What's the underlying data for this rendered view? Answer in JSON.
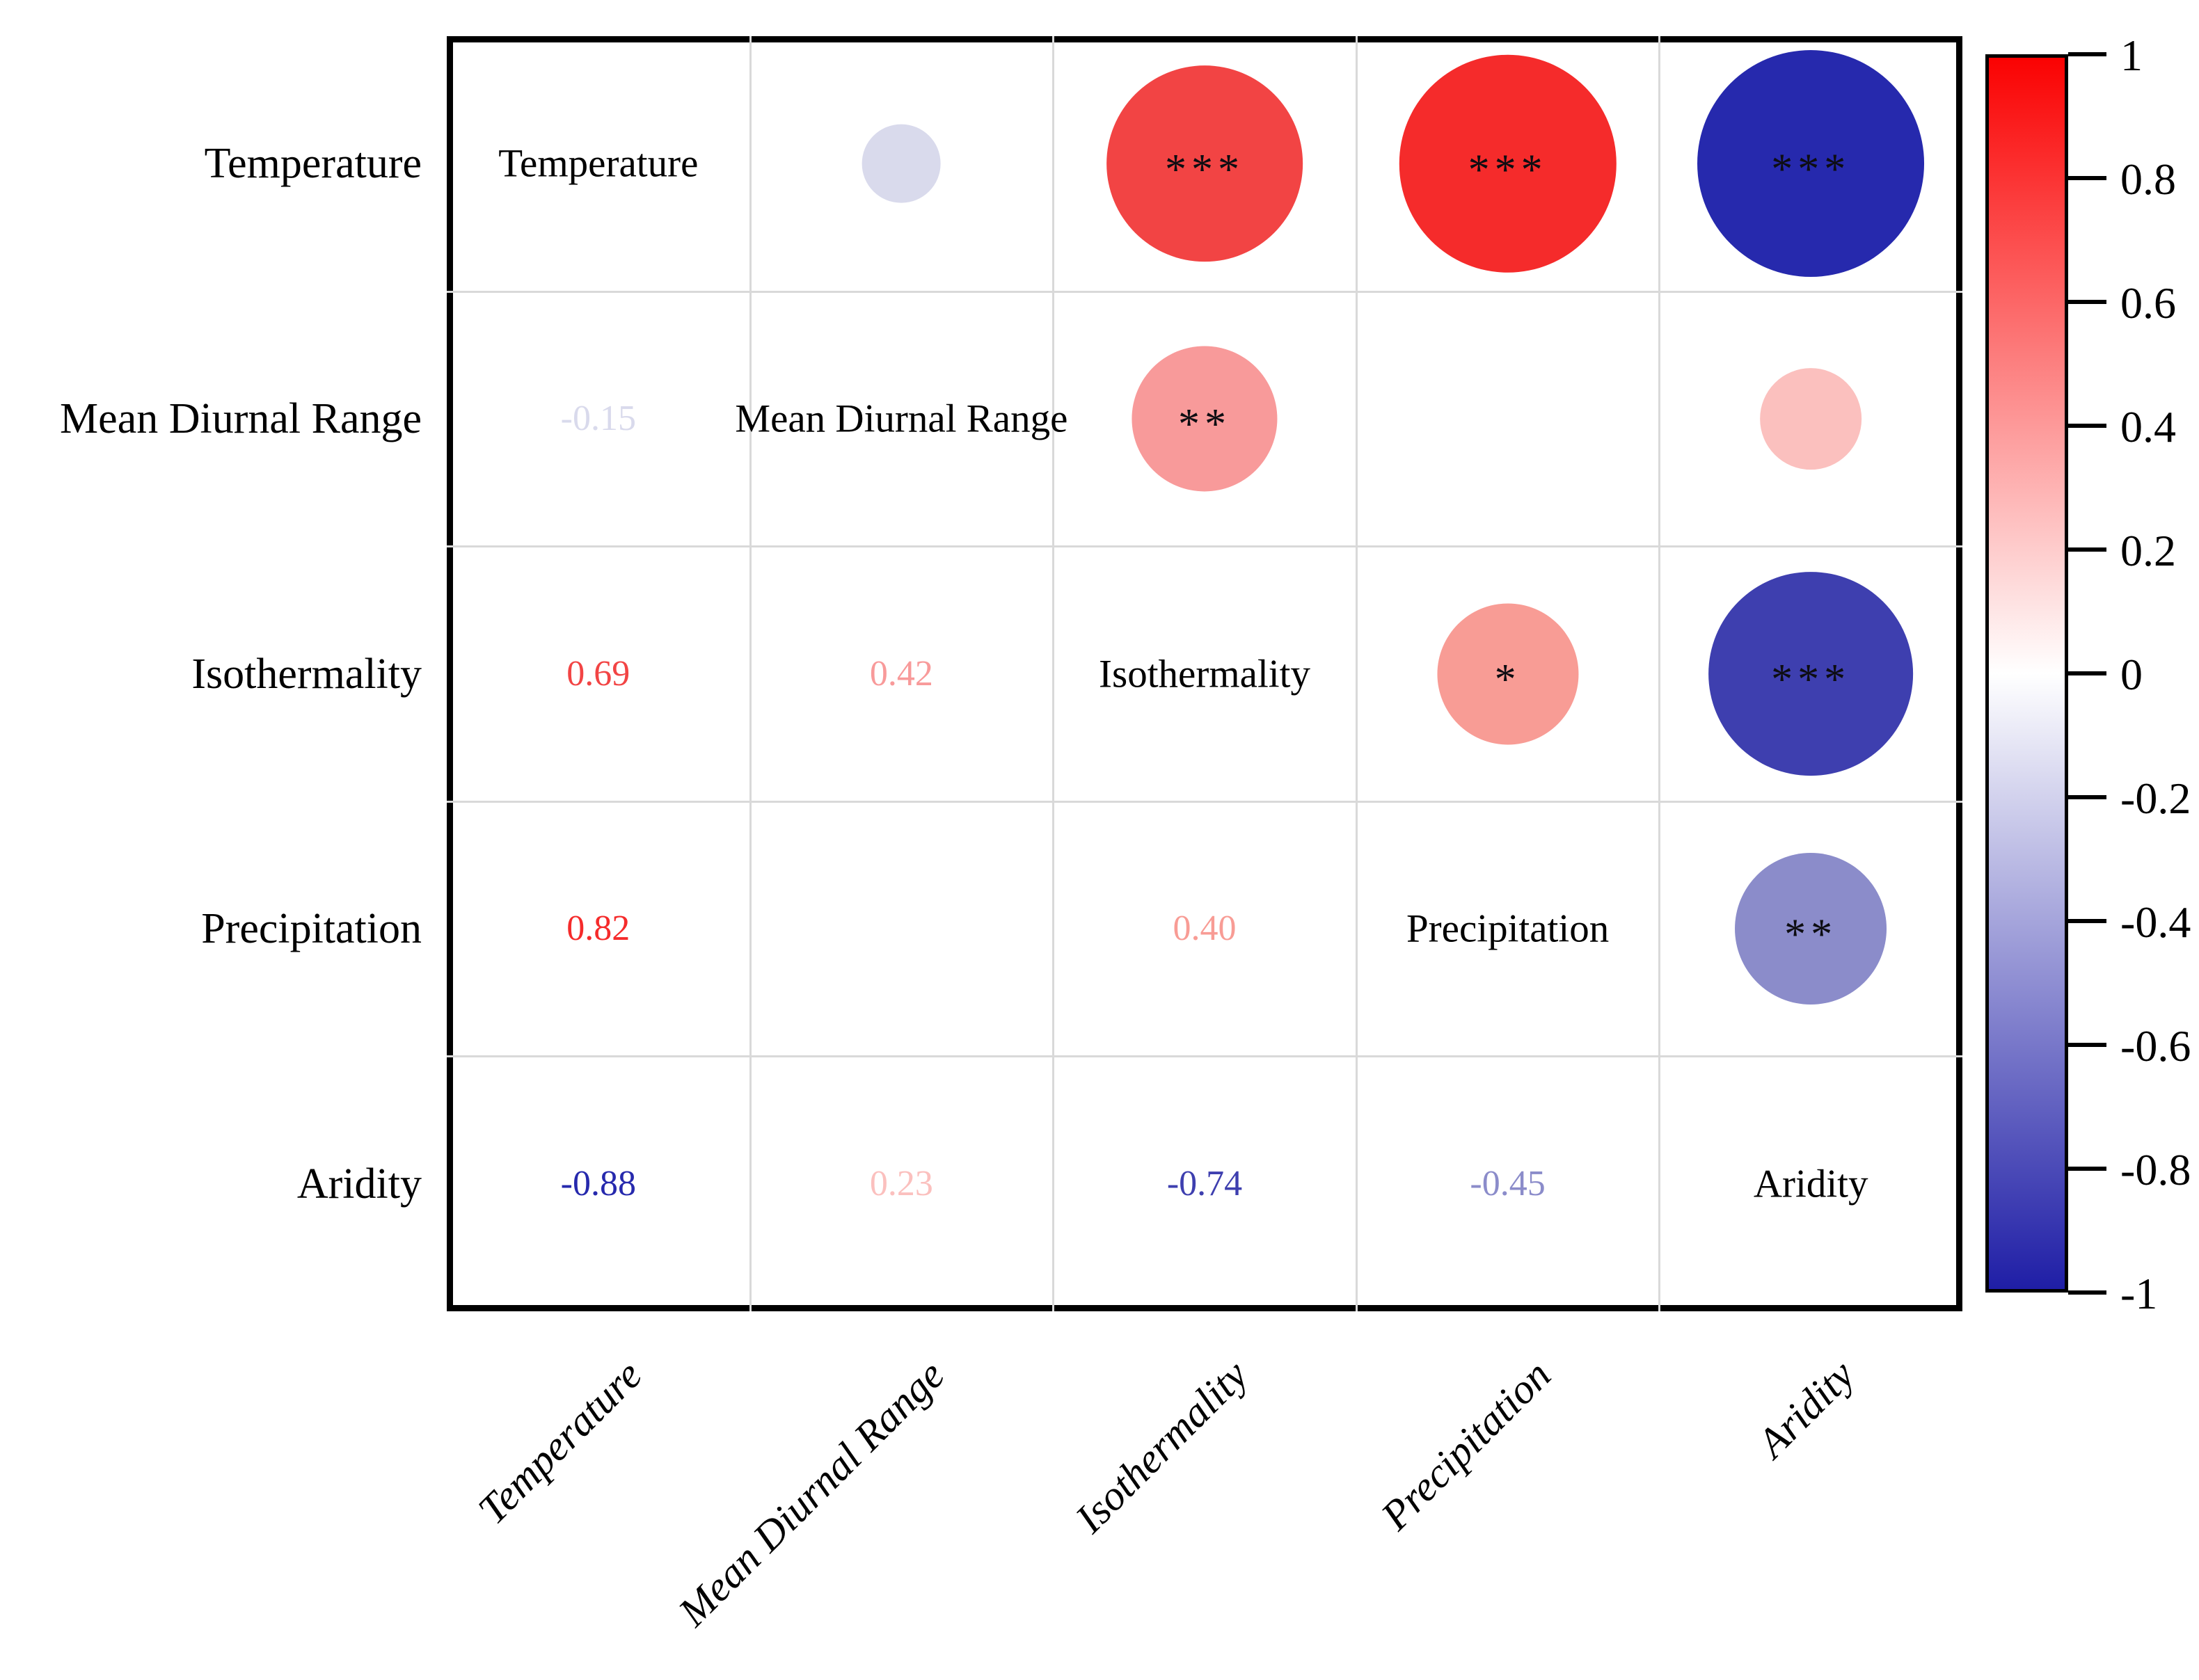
{
  "chart_data": {
    "type": "heatmap",
    "subtype": "correlation-matrix-corrplot",
    "variables": [
      "Temperature",
      "Mean Diurnal Range",
      "Isothermality",
      "Precipitation",
      "Aridity"
    ],
    "upper_triangle": "circles sized by |r|, colored by r, significance stars",
    "lower_triangle": "numeric r values colored by r",
    "pairs": [
      {
        "a": 0,
        "b": 1,
        "r": -0.15,
        "display": "-0.15",
        "stars": "",
        "color": "#d9daec"
      },
      {
        "a": 0,
        "b": 2,
        "r": 0.69,
        "display": "0.69",
        "stars": "***",
        "color": "#f24444"
      },
      {
        "a": 0,
        "b": 3,
        "r": 0.82,
        "display": "0.82",
        "stars": "***",
        "color": "#f52b2b"
      },
      {
        "a": 0,
        "b": 4,
        "r": -0.88,
        "display": "-0.88",
        "stars": "***",
        "color": "#2629ad"
      },
      {
        "a": 1,
        "b": 2,
        "r": 0.42,
        "display": "0.42",
        "stars": "**",
        "color": "#f89a9a"
      },
      {
        "a": 1,
        "b": 4,
        "r": 0.23,
        "display": "0.23",
        "stars": "",
        "color": "#fbc0be"
      },
      {
        "a": 2,
        "b": 3,
        "r": 0.4,
        "display": "0.40",
        "stars": "*",
        "color": "#f89c95"
      },
      {
        "a": 2,
        "b": 4,
        "r": -0.74,
        "display": "-0.74",
        "stars": "***",
        "color": "#3e3faf"
      },
      {
        "a": 3,
        "b": 4,
        "r": -0.45,
        "display": "-0.45",
        "stars": "**",
        "color": "#8b8cca"
      }
    ],
    "colorbar": {
      "position": "right",
      "range": [
        1,
        -1
      ],
      "ticks": [
        "1",
        "0.8",
        "0.6",
        "0.4",
        "0.2",
        "0",
        "-0.2",
        "-0.4",
        "-0.6",
        "-0.8",
        "-1"
      ],
      "top_color": "#fa0202",
      "mid_color": "#ffffff",
      "bottom_color": "#1f1ea6"
    },
    "grid": true,
    "circle_size_rule": "diameter ~ cellHeight * 0.96 * |r|^0.6"
  }
}
